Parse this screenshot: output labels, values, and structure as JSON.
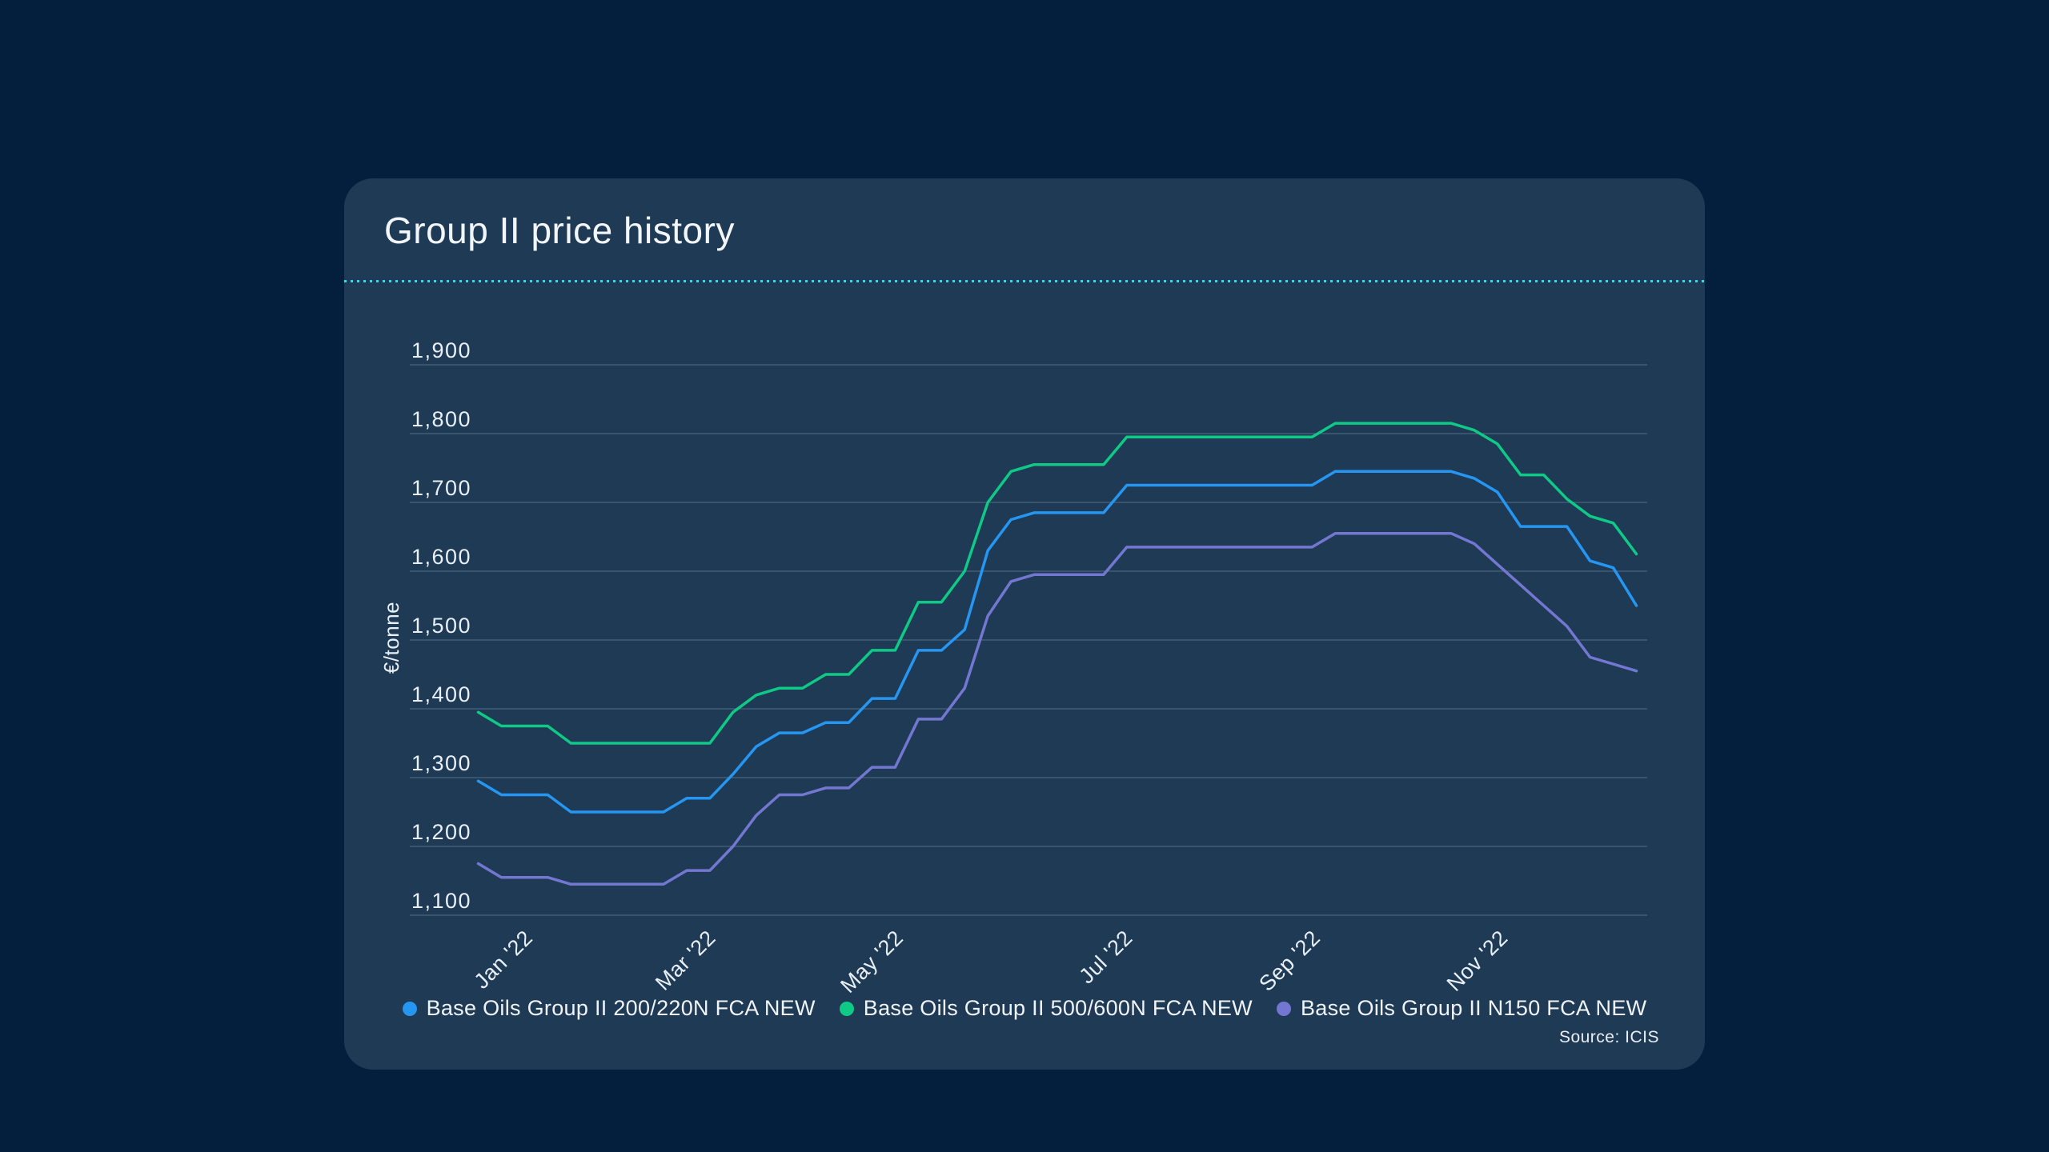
{
  "page": {
    "background": "#041F3D"
  },
  "card": {
    "title": "Group II price history",
    "background": "#1F3A55",
    "divider_color": "#46D3E6",
    "source": "Source: ICIS"
  },
  "chart_data": {
    "type": "line",
    "title": "Group II price history",
    "ylabel": "€/tonne",
    "ylim": [
      1100,
      1900
    ],
    "y_ticks": [
      "1,900",
      "1,800",
      "1,700",
      "1,600",
      "1,500",
      "1,400",
      "1,300",
      "1,200",
      "1,100"
    ],
    "y_tick_values": [
      1900,
      1800,
      1700,
      1600,
      1500,
      1400,
      1300,
      1200,
      1100
    ],
    "grid": "horizontal only",
    "legend_position": "bottom center",
    "x_tick_labels": [
      "Jan '22",
      "Mar '22",
      "May '22",
      "Jul '22",
      "Sep '22",
      "Nov '22"
    ],
    "x_tick_point_indices": [
      2.4,
      10.3,
      18.4,
      28.3,
      36.4,
      44.5
    ],
    "x_axis_note": "51 weekly stepped price observations spanning ~mid-Dec 2021 to end-Nov 2022; values in €/tonne",
    "series": [
      {
        "name": "Base Oils Group II 200/220N FCA NEW",
        "color": "#2596F2",
        "values": [
          1295,
          1275,
          1275,
          1275,
          1250,
          1250,
          1250,
          1250,
          1250,
          1270,
          1270,
          1305,
          1345,
          1365,
          1365,
          1380,
          1380,
          1415,
          1415,
          1485,
          1485,
          1515,
          1630,
          1675,
          1685,
          1685,
          1685,
          1685,
          1725,
          1725,
          1725,
          1725,
          1725,
          1725,
          1725,
          1725,
          1725,
          1745,
          1745,
          1745,
          1745,
          1745,
          1745,
          1735,
          1715,
          1665,
          1665,
          1665,
          1615,
          1605,
          1550
        ]
      },
      {
        "name": "Base Oils Group II 500/600N FCA NEW",
        "color": "#0FC987",
        "values": [
          1395,
          1375,
          1375,
          1375,
          1350,
          1350,
          1350,
          1350,
          1350,
          1350,
          1350,
          1395,
          1420,
          1430,
          1430,
          1450,
          1450,
          1485,
          1485,
          1555,
          1555,
          1600,
          1700,
          1745,
          1755,
          1755,
          1755,
          1755,
          1795,
          1795,
          1795,
          1795,
          1795,
          1795,
          1795,
          1795,
          1795,
          1815,
          1815,
          1815,
          1815,
          1815,
          1815,
          1805,
          1785,
          1740,
          1740,
          1705,
          1680,
          1670,
          1625
        ]
      },
      {
        "name": "Base Oils Group II N150 FCA NEW",
        "color": "#7477D1",
        "values": [
          1175,
          1155,
          1155,
          1155,
          1145,
          1145,
          1145,
          1145,
          1145,
          1165,
          1165,
          1200,
          1245,
          1275,
          1275,
          1285,
          1285,
          1315,
          1315,
          1385,
          1385,
          1430,
          1535,
          1585,
          1595,
          1595,
          1595,
          1595,
          1635,
          1635,
          1635,
          1635,
          1635,
          1635,
          1635,
          1635,
          1635,
          1655,
          1655,
          1655,
          1655,
          1655,
          1655,
          1640,
          1610,
          1580,
          1550,
          1520,
          1475,
          1465,
          1455
        ]
      }
    ]
  }
}
